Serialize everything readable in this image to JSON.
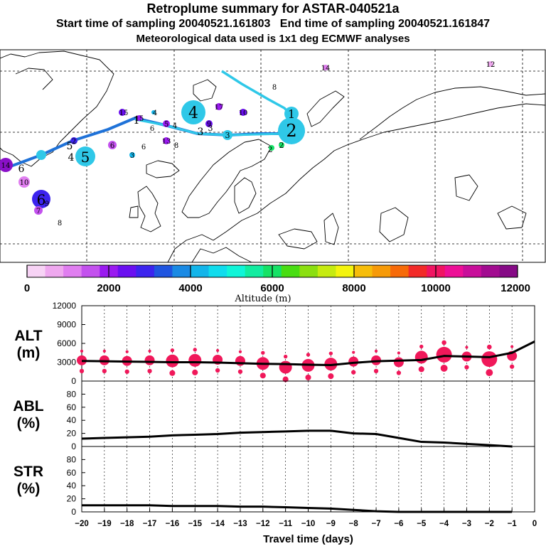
{
  "header": {
    "title": "Retroplume summary for ASTAR-040521a",
    "start_label": "Start time of sampling 20040521.161803",
    "end_label": "End time of sampling 20040521.161847",
    "met_label": "Meteorological data used is 1x1 deg ECMWF analyses"
  },
  "colors": {
    "plume_line_1": "#2fc8e8",
    "plume_line_2": "#1f72d8",
    "marker": "#f0185a",
    "curve": "#000000",
    "colorbar": [
      "#f7d3f5",
      "#efa8ef",
      "#e07ef0",
      "#c351ee",
      "#9a1af0",
      "#6a0ff0",
      "#3c24ee",
      "#1f55e0",
      "#1a8ae4",
      "#13b5ea",
      "#10dced",
      "#10f5d8",
      "#12eca0",
      "#15e266",
      "#48dd12",
      "#8bdf10",
      "#c6eb10",
      "#f4f40e",
      "#f6bd0a",
      "#f69a08",
      "#f66a08",
      "#f22a28",
      "#f01462",
      "#ed0f96",
      "#c80e9a",
      "#a20b90",
      "#860a86"
    ]
  },
  "map_labels": [
    {
      "text": "14",
      "color": "#b020b0"
    },
    {
      "text": "12",
      "color": "#c01090"
    },
    {
      "text": "8",
      "color": "#000000"
    },
    {
      "text": "1",
      "color": "#000000"
    },
    {
      "text": "2",
      "color": "#000000"
    },
    {
      "text": "4",
      "color": "#000000"
    },
    {
      "text": "3",
      "color": "#000000"
    },
    {
      "text": "5",
      "color": "#000000"
    },
    {
      "text": "6",
      "color": "#000000"
    },
    {
      "text": "7",
      "color": "#000000"
    },
    {
      "text": "10",
      "color": "#000000"
    },
    {
      "text": "13",
      "color": "#000000"
    },
    {
      "text": "15",
      "color": "#000000"
    },
    {
      "text": "9",
      "color": "#000000"
    },
    {
      "text": "11",
      "color": "#000000"
    },
    {
      "text": "14",
      "color": "#000000"
    }
  ],
  "chart_data": [
    {
      "type": "colorbar",
      "title": "Altitude (m)",
      "ticks": [
        0,
        2000,
        4000,
        6000,
        8000,
        10000,
        12000
      ],
      "tick_labels": [
        "0",
        "2000",
        "4000",
        "6000",
        "8000",
        "10000",
        "12000"
      ],
      "range": [
        0,
        12000
      ]
    },
    {
      "type": "line",
      "name": "ALT",
      "ylabel": "ALT\n(m)",
      "ylabel_lines": [
        "ALT",
        "(m)"
      ],
      "ylim": [
        0,
        12000
      ],
      "yticks": [
        0,
        3000,
        6000,
        9000,
        12000
      ],
      "ytick_labels": [
        "0",
        "3000",
        "6000",
        "9000",
        "12000"
      ],
      "x": [
        -20,
        -19,
        -18,
        -17,
        -16,
        -15,
        -14,
        -13,
        -12,
        -11,
        -10,
        -9,
        -8,
        -7,
        -6,
        -5,
        -4,
        -3,
        -2,
        -1,
        0
      ],
      "values": [
        3200,
        3150,
        3100,
        3050,
        3000,
        3000,
        2950,
        2850,
        2750,
        2700,
        2600,
        2550,
        2900,
        3150,
        3250,
        3350,
        4000,
        3900,
        3800,
        4500,
        6300
      ],
      "markers": {
        "x": [
          -20,
          -19,
          -18,
          -17,
          -16,
          -15,
          -14,
          -13,
          -12,
          -11,
          -10,
          -9,
          -8,
          -7,
          -6,
          -5,
          -4,
          -3,
          -2,
          -1
        ],
        "y": [
          3300,
          3300,
          3200,
          3300,
          3200,
          3300,
          3400,
          3200,
          2800,
          2200,
          2500,
          2700,
          3100,
          3300,
          3000,
          3800,
          4200,
          3900,
          3500,
          4000
        ],
        "size": [
          2,
          2,
          2,
          2,
          3,
          3,
          2,
          2,
          3,
          3,
          3,
          3,
          2,
          2,
          2,
          3,
          4,
          2,
          4,
          2
        ]
      }
    },
    {
      "type": "line",
      "name": "ABL",
      "ylabel_lines": [
        "ABL",
        "(%)"
      ],
      "ylim": [
        0,
        100
      ],
      "yticks": [
        0,
        20,
        40,
        60,
        80
      ],
      "ytick_labels": [
        "0",
        "20",
        "40",
        "60",
        "80"
      ],
      "x": [
        -20,
        -19,
        -18,
        -17,
        -16,
        -15,
        -14,
        -13,
        -12,
        -11,
        -10,
        -9,
        -8,
        -7,
        -6,
        -5,
        -4,
        -3,
        -2,
        -1
      ],
      "values": [
        12,
        13,
        14,
        15,
        17,
        18,
        19,
        21,
        22,
        23,
        24,
        24,
        20,
        19,
        13,
        7,
        6,
        4,
        2,
        0
      ]
    },
    {
      "type": "line",
      "name": "STR",
      "ylabel_lines": [
        "STR",
        "(%)"
      ],
      "ylim": [
        0,
        100
      ],
      "yticks": [
        0,
        20,
        40,
        60,
        80
      ],
      "ytick_labels": [
        "0",
        "20",
        "40",
        "60",
        "80"
      ],
      "x": [
        -20,
        -19,
        -18,
        -17,
        -16,
        -15,
        -14,
        -13,
        -12,
        -11,
        -10,
        -9,
        -8,
        -7,
        -6,
        -5,
        -4,
        -3,
        -2,
        -1
      ],
      "values": [
        10,
        10,
        10,
        10,
        9,
        9,
        9,
        8,
        8,
        7,
        6,
        5,
        3,
        1,
        0,
        0,
        0,
        0,
        0,
        0
      ],
      "xlabel": "Travel time (days)",
      "xticks": [
        -20,
        -19,
        -18,
        -17,
        -16,
        -15,
        -14,
        -13,
        -12,
        -11,
        -10,
        -9,
        -8,
        -7,
        -6,
        -5,
        -4,
        -3,
        -2,
        -1,
        0
      ],
      "xtick_labels": [
        "−20",
        "−19",
        "−18",
        "−17",
        "−16",
        "−15",
        "−14",
        "−13",
        "−12",
        "−11",
        "−10",
        "−9",
        "−8",
        "−7",
        "−6",
        "−5",
        "−4",
        "−3",
        "−2",
        "−1",
        "0"
      ]
    }
  ]
}
